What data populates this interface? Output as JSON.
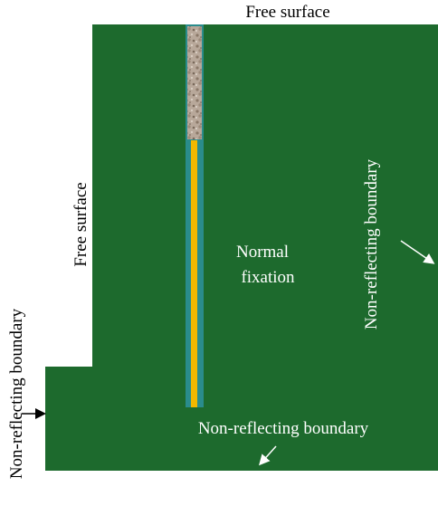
{
  "labels": {
    "top_surface": "Free surface",
    "left_surface": "Free surface",
    "pile": [
      "Normal",
      "fixation"
    ],
    "right_boundary": "Non-reflecting boundary",
    "bottom_boundary": "Non-reflecting boundary",
    "left_boundary": "Non-reflecting boundary"
  }
}
